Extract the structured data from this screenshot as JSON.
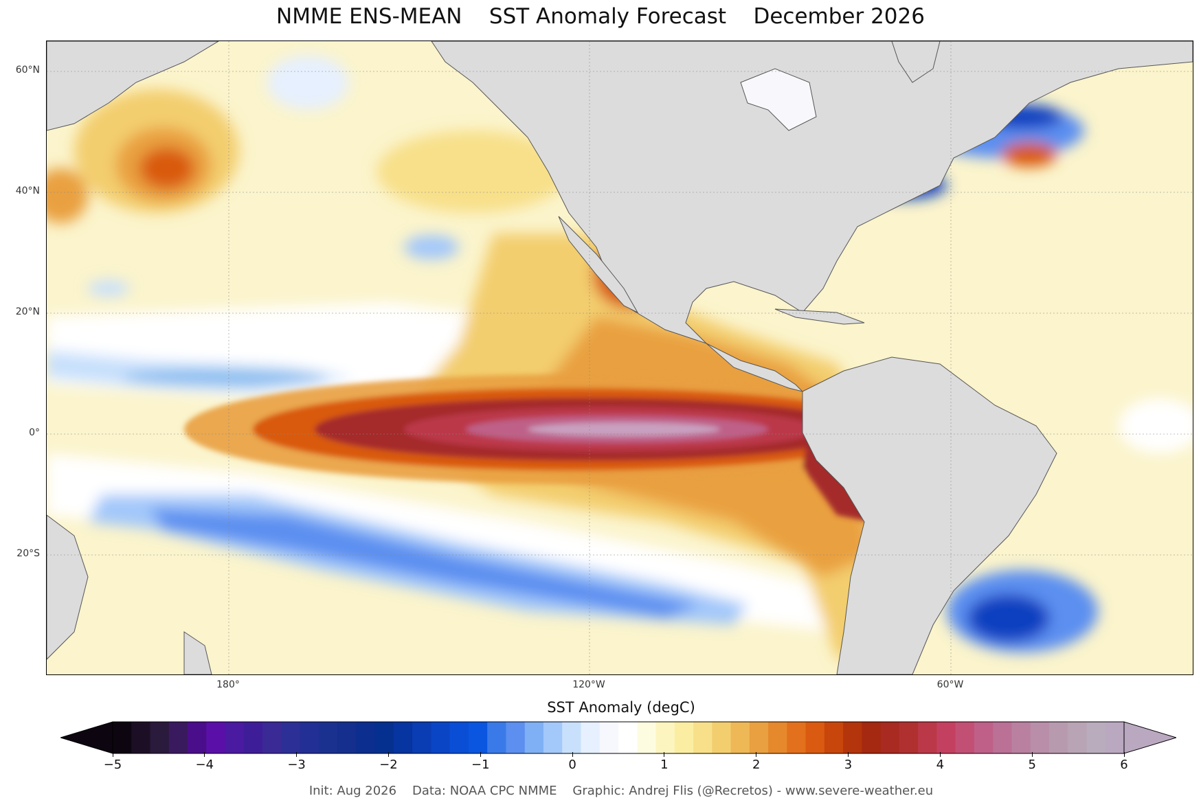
{
  "header": {
    "title": "NMME ENS-MEAN    SST Anomaly Forecast    December 2026"
  },
  "map": {
    "lat_ticks": [
      "60°N",
      "40°N",
      "20°N",
      "0°",
      "20°S"
    ],
    "lon_ticks": [
      "180°",
      "120°W",
      "60°W"
    ],
    "land_color": "#dcdcdc",
    "colors": {
      "strong_warm": "#a52a2a",
      "peak_warm": "#c9a0c0",
      "warm": "#e8a040",
      "mild_warm": "#f8e8a0",
      "cool": "#90c0f0",
      "strong_cool": "#1040c0"
    }
  },
  "colorbar": {
    "title": "SST Anomaly (degC)",
    "ticks": [
      "−5",
      "−4",
      "−3",
      "−2",
      "−1",
      "0",
      "1",
      "2",
      "3",
      "4",
      "5",
      "6"
    ],
    "stops": [
      "#0d0510",
      "#1c0f25",
      "#2a1a3c",
      "#3a1a5e",
      "#4b0e8a",
      "#5a10a8",
      "#4a1aa0",
      "#3e1e98",
      "#3a2a96",
      "#2c2f96",
      "#222f94",
      "#1b3190",
      "#142f8e",
      "#0b2e8f",
      "#06308f",
      "#0634a0",
      "#0a3cb4",
      "#0a45c6",
      "#0a4ed6",
      "#0a56e0",
      "#3a7ae8",
      "#5c8ff0",
      "#7fb0f5",
      "#a3c8fa",
      "#c8e0fc",
      "#e6f0fe",
      "#f6f8fe",
      "#ffffff",
      "#fefce0",
      "#fdf5c0",
      "#fbeea2",
      "#f8e08a",
      "#f3ce6e",
      "#eeb856",
      "#e9a040",
      "#e6882c",
      "#e2701c",
      "#d95a10",
      "#c8460c",
      "#b4340c",
      "#a52810",
      "#a82a20",
      "#b03030",
      "#bb3848",
      "#c44060",
      "#c25074",
      "#bf6088",
      "#bb7096",
      "#b980a0",
      "#b88ea8",
      "#b89aae",
      "#b8a4b4",
      "#b9acbc",
      "#baa8c0"
    ]
  },
  "footer": {
    "text": "Init: Aug 2026    Data: NOAA CPC NMME    Graphic: Andrej Flis (@Recretos) - www.severe-weather.eu"
  }
}
